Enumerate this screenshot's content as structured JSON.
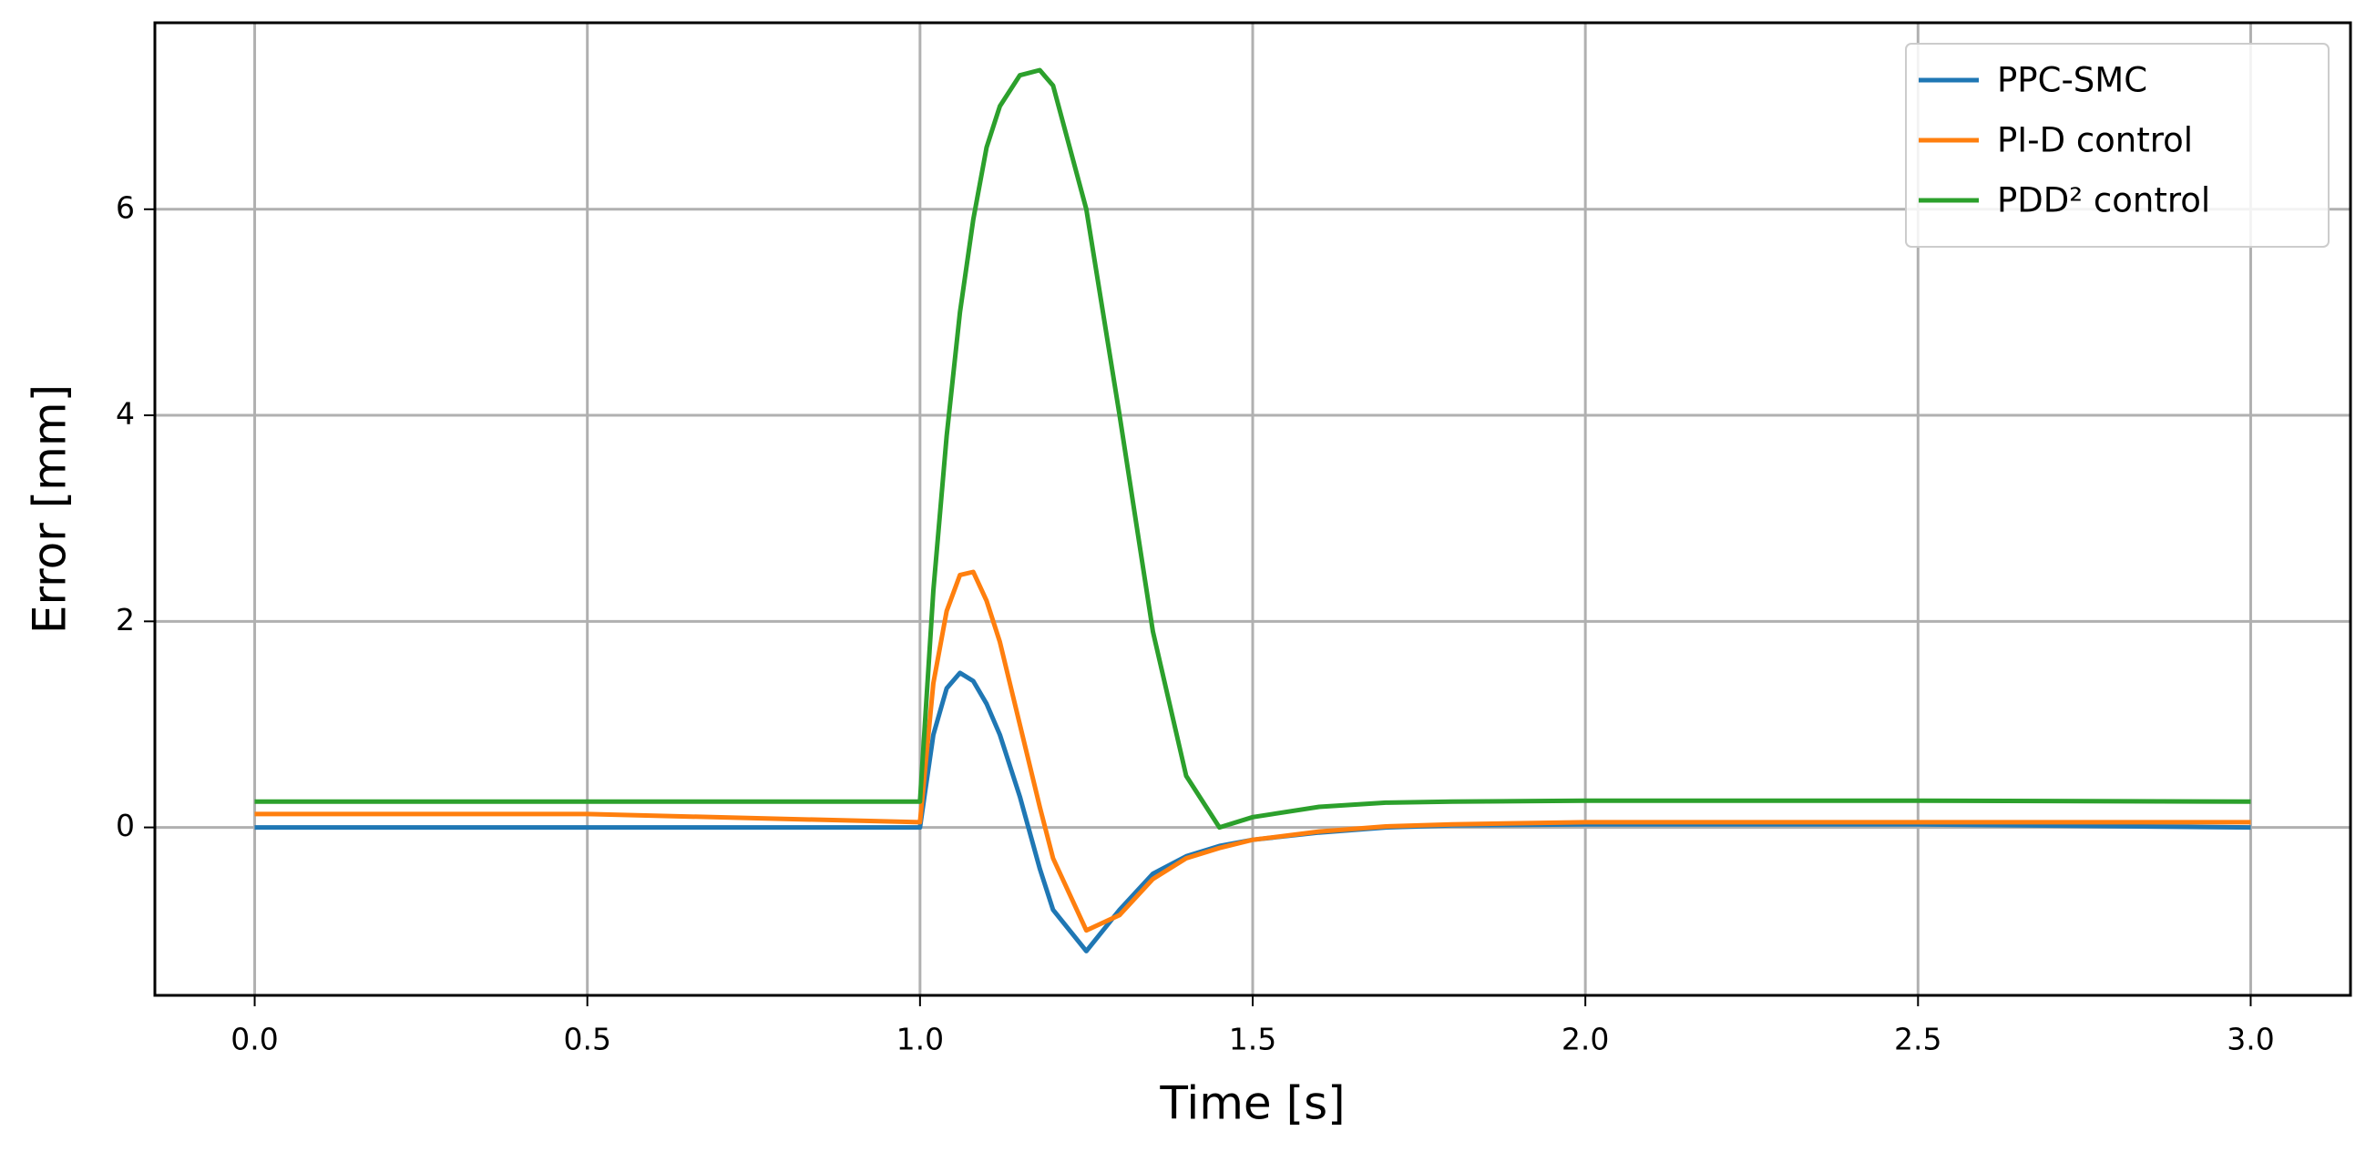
{
  "chart_data": {
    "type": "line",
    "xlabel": "Time [s]",
    "ylabel": "Error [mm]",
    "x": [
      0,
      0.5,
      1.0,
      1.02,
      1.04,
      1.06,
      1.08,
      1.1,
      1.12,
      1.15,
      1.18,
      1.2,
      1.25,
      1.3,
      1.35,
      1.4,
      1.45,
      1.5,
      1.6,
      1.7,
      1.8,
      2.0,
      2.5,
      3.0
    ],
    "series": [
      {
        "name": "PPC-SMC",
        "color": "#1f77b4",
        "values": [
          0,
          0,
          0,
          0.9,
          1.35,
          1.5,
          1.42,
          1.2,
          0.9,
          0.3,
          -0.4,
          -0.8,
          -1.2,
          -0.8,
          -0.45,
          -0.28,
          -0.18,
          -0.12,
          -0.05,
          0,
          0.02,
          0.03,
          0.03,
          0
        ]
      },
      {
        "name": "PI-D control",
        "color": "#ff7f0e",
        "values": [
          0.13,
          0.13,
          0.05,
          1.4,
          2.1,
          2.45,
          2.48,
          2.2,
          1.8,
          1.0,
          0.2,
          -0.3,
          -1.0,
          -0.85,
          -0.5,
          -0.3,
          -0.2,
          -0.12,
          -0.04,
          0.01,
          0.03,
          0.05,
          0.05,
          0.05
        ]
      },
      {
        "name": "PDD² control",
        "color": "#2ca02c",
        "values": [
          0.25,
          0.25,
          0.25,
          2.3,
          3.8,
          5.0,
          5.9,
          6.6,
          7.0,
          7.3,
          7.35,
          7.2,
          6.0,
          4.0,
          1.9,
          0.5,
          0.0,
          0.1,
          0.2,
          0.24,
          0.25,
          0.26,
          0.26,
          0.25
        ]
      }
    ],
    "xlim": [
      -0.15,
      3.15
    ],
    "xticks": [
      {
        "value": 0,
        "label": "0.0"
      },
      0.5,
      {
        "value": 1,
        "label": "1.0"
      },
      1.5,
      {
        "value": 2,
        "label": "2.0"
      },
      2.5,
      {
        "value": 3,
        "label": "3.0"
      }
    ],
    "ylim": [
      -1.63,
      7.81
    ],
    "yticks": [
      0,
      2,
      4,
      6
    ],
    "grid": true,
    "legend": "upper right"
  }
}
